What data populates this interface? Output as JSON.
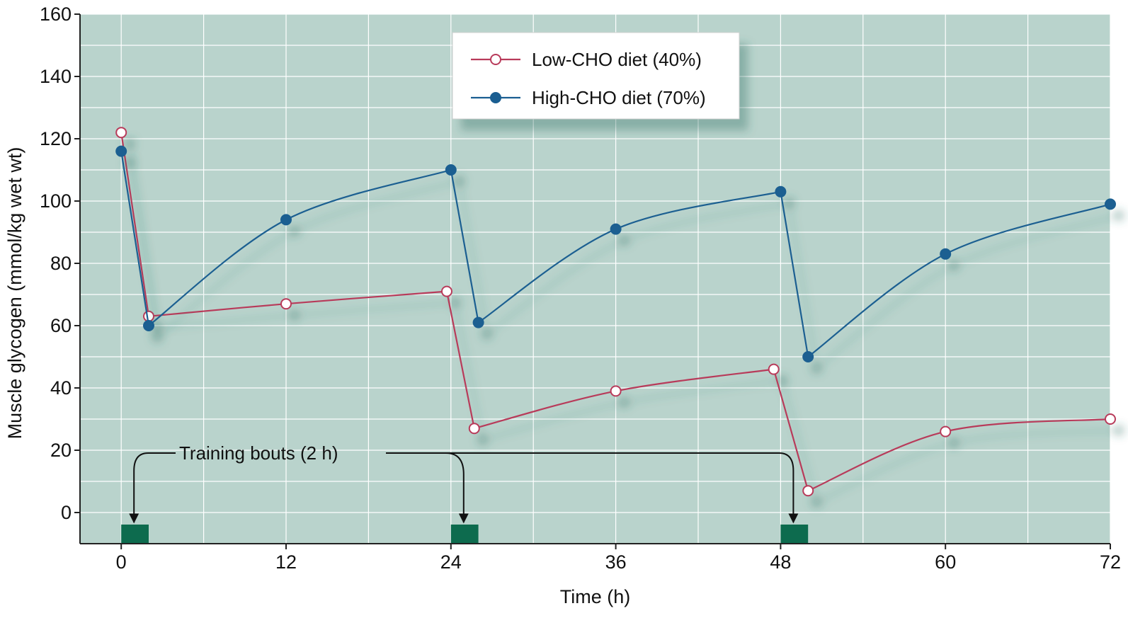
{
  "chart_data": {
    "type": "line",
    "xlabel": "Time (h)",
    "ylabel": "Muscle glycogen (mmol/kg wet wt)",
    "xlim": [
      -3,
      72
    ],
    "ylim": [
      -10,
      160
    ],
    "xticks": [
      0,
      12,
      24,
      36,
      48,
      60,
      72
    ],
    "yticks": [
      0,
      20,
      40,
      60,
      80,
      100,
      120,
      140,
      160
    ],
    "grid": true,
    "legend_position": "top-center",
    "series": [
      {
        "name": "Low-CHO diet (40%)",
        "color": "#b83a5a",
        "marker": "open-circle",
        "x": [
          0,
          2,
          12,
          23.7,
          25.7,
          36,
          47.5,
          50,
          60,
          72
        ],
        "y": [
          122,
          63,
          67,
          71,
          27,
          39,
          46,
          7,
          26,
          30
        ]
      },
      {
        "name": "High-CHO diet (70%)",
        "color": "#1a5e91",
        "marker": "filled-circle",
        "x": [
          0,
          2,
          12,
          24,
          26,
          36,
          48,
          50,
          60,
          72
        ],
        "y": [
          116,
          60,
          94,
          110,
          61,
          91,
          103,
          50,
          83,
          99
        ]
      }
    ],
    "annotations": [
      {
        "text": "Training bouts (2 h)",
        "bout_starts_h": [
          0,
          24,
          48
        ],
        "bout_duration_h": 2
      }
    ]
  },
  "colors": {
    "plot_background": "#b9d3cc",
    "grid": "#ffffff",
    "bout_bar": "#0d6b4e",
    "legend_background": "#ffffff"
  }
}
